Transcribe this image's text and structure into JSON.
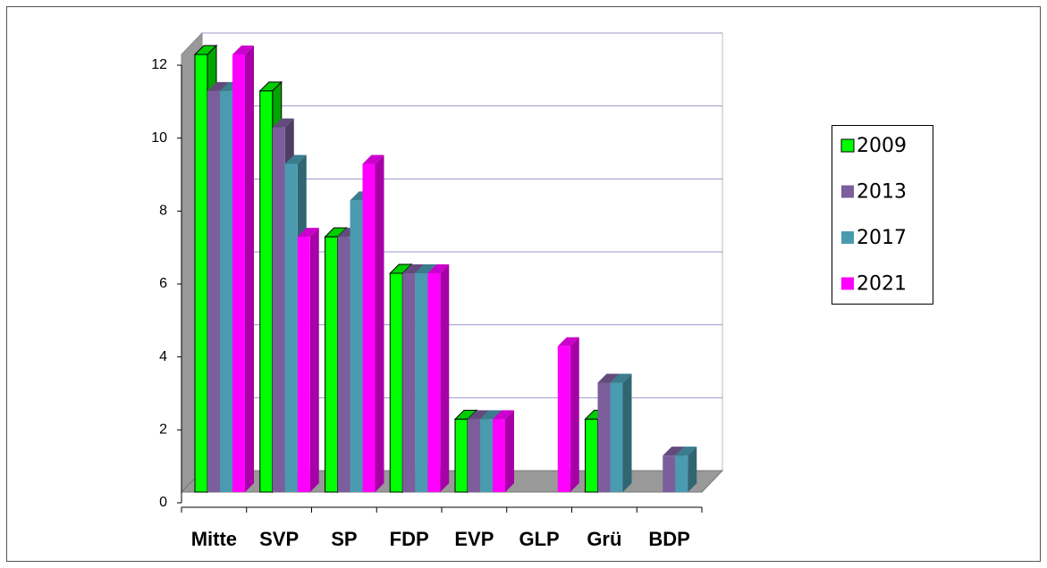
{
  "chart_data": {
    "type": "bar3d",
    "categories": [
      "Mitte",
      "SVP",
      "SP",
      "FDP",
      "EVP",
      "GLP",
      "Grü",
      "BDP"
    ],
    "series": [
      {
        "name": "2009",
        "color": "#00ff00",
        "values": [
          12,
          11,
          7,
          6,
          2,
          0,
          2,
          0
        ]
      },
      {
        "name": "2013",
        "color": "#7b5e9b",
        "values": [
          11,
          10,
          7,
          6,
          2,
          0,
          3,
          1
        ]
      },
      {
        "name": "2017",
        "color": "#4a9bb0",
        "values": [
          11,
          9,
          8,
          6,
          2,
          0,
          3,
          1
        ]
      },
      {
        "name": "2021",
        "color": "#ff00ff",
        "values": [
          12,
          7,
          9,
          6,
          2,
          4,
          0,
          0
        ]
      }
    ],
    "ylim": [
      0,
      12
    ],
    "yticks": [
      0,
      2,
      4,
      6,
      8,
      10,
      12
    ],
    "grid": true,
    "legend": "right"
  }
}
